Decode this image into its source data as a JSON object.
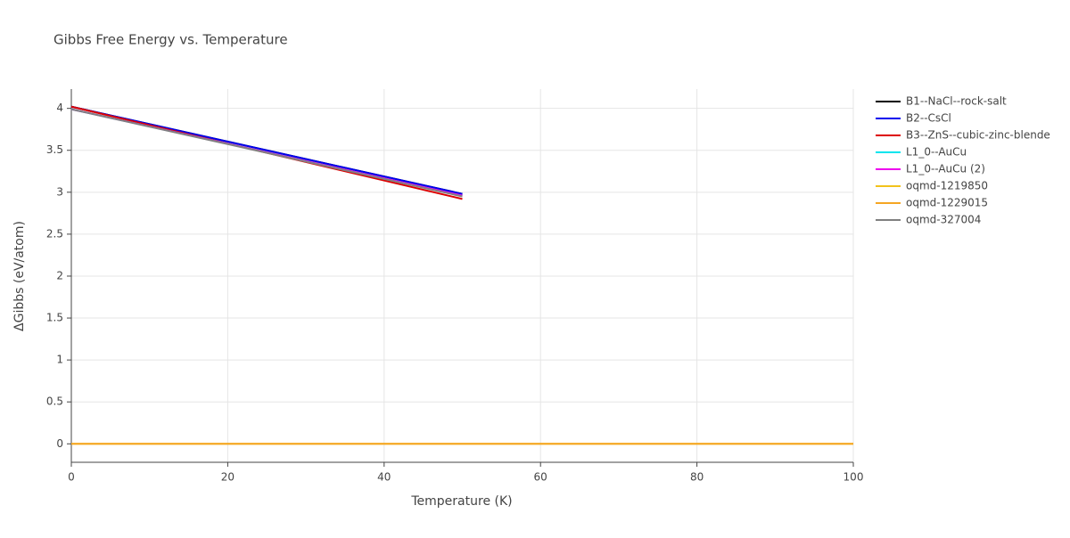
{
  "chart_data": {
    "type": "line",
    "title": "Gibbs Free Energy vs. Temperature",
    "xlabel": "Temperature (K)",
    "ylabel": "ΔGibbs (eV/atom)",
    "xlim": [
      0,
      100
    ],
    "xticks": [
      0,
      20,
      40,
      60,
      80,
      100
    ],
    "ylim": [
      -0.22,
      4.23
    ],
    "yticks": [
      0,
      0.5,
      1,
      1.5,
      2,
      2.5,
      3,
      3.5,
      4
    ],
    "grid": true,
    "legend": "right",
    "series": [
      {
        "name": "B1--NaCl--rock-salt",
        "color": "#000000",
        "x": [
          0,
          50
        ],
        "values": [
          4.02,
          2.98
        ]
      },
      {
        "name": "B2--CsCl",
        "color": "#0000ee",
        "x": [
          0,
          50
        ],
        "values": [
          4.02,
          2.98
        ]
      },
      {
        "name": "B3--ZnS--cubic-zinc-blende",
        "color": "#dd0000",
        "x": [
          0,
          50
        ],
        "values": [
          4.02,
          2.92
        ]
      },
      {
        "name": "L1_0--AuCu",
        "color": "#00e5ee",
        "x": [
          0,
          50
        ],
        "values": [
          3.99,
          2.96
        ]
      },
      {
        "name": "L1_0--AuCu (2)",
        "color": "#ee00ee",
        "x": [
          0,
          50
        ],
        "values": [
          3.99,
          2.96
        ]
      },
      {
        "name": "oqmd-1219850",
        "color": "#f2c21b",
        "x": [
          0,
          100
        ],
        "values": [
          0,
          0
        ]
      },
      {
        "name": "oqmd-1229015",
        "color": "#f5a623",
        "x": [
          0,
          100
        ],
        "values": [
          0,
          0
        ]
      },
      {
        "name": "oqmd-327004",
        "color": "#808080",
        "x": [
          0,
          50
        ],
        "values": [
          3.99,
          2.95
        ]
      }
    ]
  }
}
